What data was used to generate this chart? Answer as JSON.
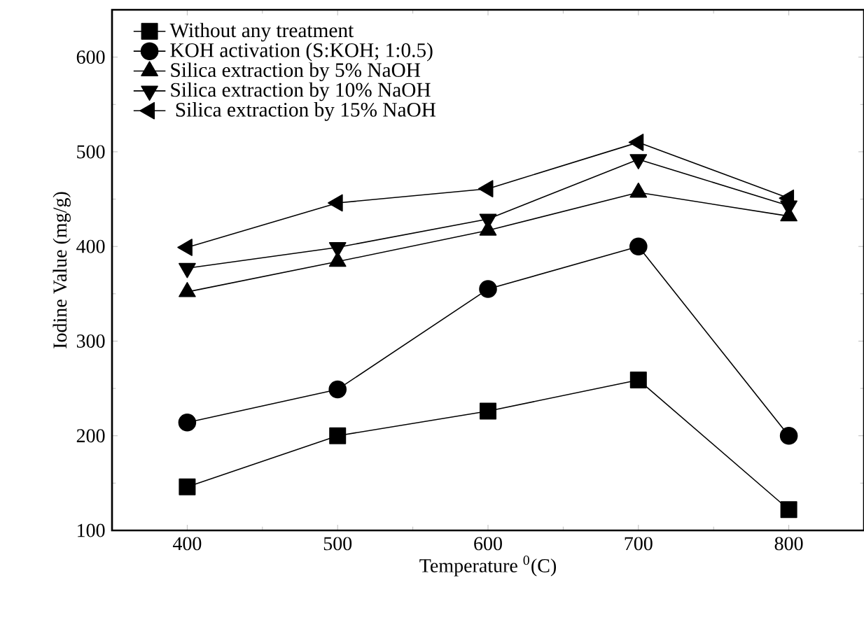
{
  "chart_data": {
    "type": "line",
    "xlabel": "Temperature $^{0}$(C)",
    "ylabel": "Iodine Value (mg/g)",
    "x": [
      400,
      500,
      600,
      700,
      800
    ],
    "xlim": [
      350,
      850
    ],
    "xticks": [
      400,
      500,
      600,
      700,
      800
    ],
    "ylim": [
      100,
      650
    ],
    "yticks": [
      100,
      200,
      300,
      400,
      500,
      600
    ],
    "legend": "top left",
    "series": [
      {
        "name": "Without any treatment",
        "color": "#000000",
        "marker": "square",
        "values": [
          146,
          200,
          226,
          259,
          122
        ]
      },
      {
        "name": "KOH activation (S:KOH; 1:0.5)",
        "color": "#000000",
        "marker": "circle",
        "values": [
          214,
          249,
          355,
          400,
          200
        ]
      },
      {
        "name": "Silica extraction by 5% NaOH",
        "color": "#000000",
        "marker": "triangle",
        "values": [
          352,
          384,
          417,
          457,
          432
        ]
      },
      {
        "name": "Silica extraction by 10% NaOH",
        "color": "#000000",
        "marker": "triangle-down",
        "values": [
          377,
          399,
          429,
          492,
          443
        ]
      },
      {
        "name": " Silica extraction by 15% NaOH",
        "color": "#000000",
        "marker": "triangle-left",
        "values": [
          399,
          446,
          461,
          510,
          451
        ]
      }
    ]
  }
}
